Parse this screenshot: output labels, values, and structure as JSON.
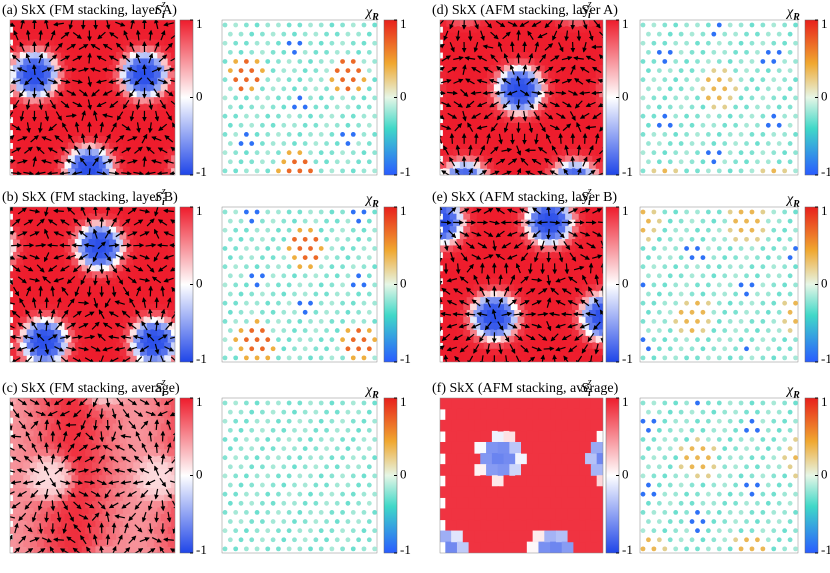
{
  "panels": [
    {
      "title": "(a) SkX (FM stacking, layer A)"
    },
    {
      "title": "(d) SkX (AFM stacking, layer A)"
    },
    {
      "title": "(b) SkX (FM stacking, layer B)"
    },
    {
      "title": "(e) SkX (AFM stacking, layer B)"
    },
    {
      "title": "(c) SkX (FM stacking, average)"
    },
    {
      "title": "(f) SkX (AFM stacking, average)"
    }
  ],
  "spin_label": {
    "base": "S",
    "sub": "i",
    "sup": "z"
  },
  "chirality_label": {
    "base": "χ",
    "sub": "R"
  },
  "colorbar_ticks": [
    1,
    0,
    -1
  ]
}
